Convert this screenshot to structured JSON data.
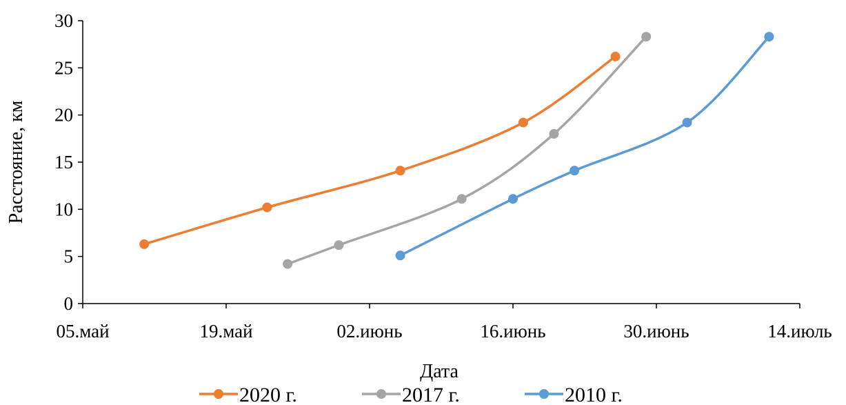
{
  "chart_data": {
    "type": "line",
    "title": "",
    "xlabel": "Дата",
    "ylabel": "Расстояние, км",
    "xlim": [
      "2020-05-05",
      "2020-07-14"
    ],
    "ylim": [
      0,
      30
    ],
    "x_ticks": [
      "05.май",
      "19.май",
      "02.июнь",
      "16.июнь",
      "30.июнь",
      "14.июль"
    ],
    "y_ticks": [
      0,
      5,
      10,
      15,
      20,
      25,
      30
    ],
    "grid": false,
    "legend_position": "bottom",
    "series": [
      {
        "name": "2020 г.",
        "color": "#ED7D31",
        "points": [
          {
            "x": "2020-05-11",
            "y": 6.3
          },
          {
            "x": "2020-05-23",
            "y": 10.2
          },
          {
            "x": "2020-06-05",
            "y": 14.1
          },
          {
            "x": "2020-06-17",
            "y": 19.2
          },
          {
            "x": "2020-06-26",
            "y": 26.2
          }
        ]
      },
      {
        "name": "2017 г.",
        "color": "#A5A5A5",
        "points": [
          {
            "x": "2020-05-25",
            "y": 4.2
          },
          {
            "x": "2020-05-30",
            "y": 6.2
          },
          {
            "x": "2020-06-11",
            "y": 11.1
          },
          {
            "x": "2020-06-20",
            "y": 18.0
          },
          {
            "x": "2020-06-29",
            "y": 28.3
          }
        ]
      },
      {
        "name": "2010 г.",
        "color": "#5B9BD5",
        "points": [
          {
            "x": "2020-06-05",
            "y": 5.1
          },
          {
            "x": "2020-06-16",
            "y": 11.1
          },
          {
            "x": "2020-06-22",
            "y": 14.1
          },
          {
            "x": "2020-07-03",
            "y": 19.2
          },
          {
            "x": "2020-07-11",
            "y": 28.3
          }
        ]
      }
    ]
  }
}
